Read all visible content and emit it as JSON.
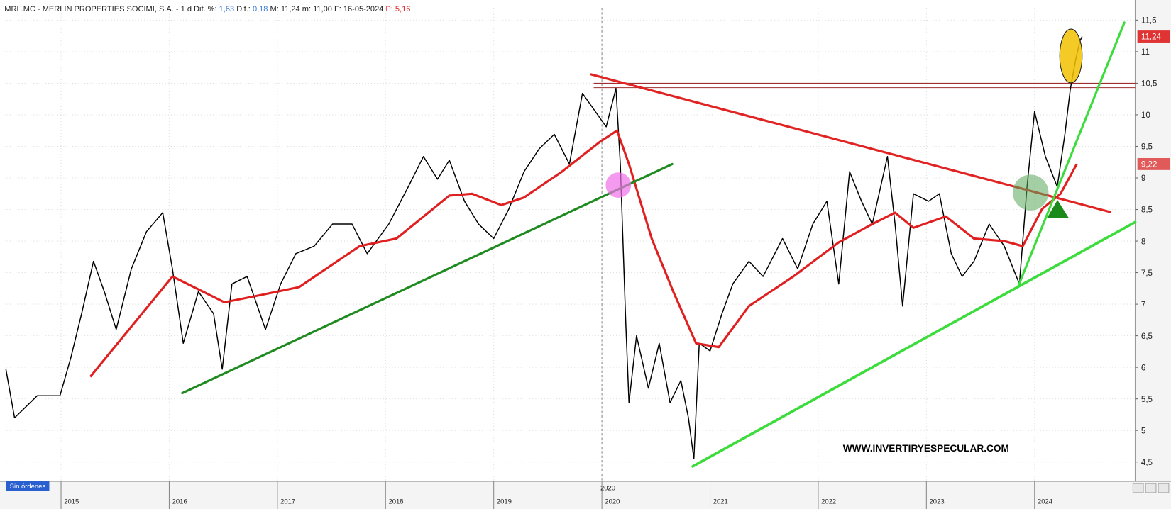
{
  "chart_data": {
    "type": "line",
    "header": [
      {
        "text": "MRL.MC - MERLIN PROPERTIES SOCIMI, S.A. - 1 d  Dif. %: ",
        "color": "#222222"
      },
      {
        "text": "1,63",
        "color": "#3a78d8"
      },
      {
        "text": "  Dif.: ",
        "color": "#222222"
      },
      {
        "text": "0,18",
        "color": "#3a78d8"
      },
      {
        "text": "  M: 11,24  m: 11,00  F: 16-05-2024  ",
        "color": "#222222"
      },
      {
        "text": "P: 5,16",
        "color": "#e02020"
      }
    ],
    "xlim": [
      2014.47,
      2024.93
    ],
    "ylim": [
      4.2,
      11.6
    ],
    "xticks": [
      2015,
      2016,
      2017,
      2018,
      2019,
      2020,
      2021,
      2022,
      2023,
      2024
    ],
    "yticks": [
      {
        "value": 4.5,
        "label": "4,5"
      },
      5,
      {
        "value": 5.5,
        "label": "5,5"
      },
      6,
      {
        "value": 6.5,
        "label": "6,5"
      },
      7,
      {
        "value": 7.5,
        "label": "7,5"
      },
      8,
      {
        "value": 8.5,
        "label": "8,5"
      },
      9,
      {
        "value": 9.5,
        "label": "9,5"
      },
      10,
      {
        "value": 10.5,
        "label": "10,5"
      },
      11,
      {
        "value": 11.5,
        "label": "11,5"
      }
    ],
    "grid": true,
    "crosshair_x": 2020,
    "series": [
      {
        "color": "#000000",
        "width": 1.4,
        "x": [
          2014.49,
          2014.57,
          2014.78,
          2014.99,
          2015.09,
          2015.19,
          2015.3,
          2015.4,
          2015.51,
          2015.65,
          2015.79,
          2015.94,
          2016.03,
          2016.13,
          2016.27,
          2016.41,
          2016.49,
          2016.58,
          2016.72,
          2016.89,
          2017.03,
          2017.17,
          2017.34,
          2017.51,
          2017.69,
          2017.83,
          2018.03,
          2018.21,
          2018.35,
          2018.48,
          2018.59,
          2018.73,
          2018.86,
          2019.0,
          2019.14,
          2019.28,
          2019.42,
          2019.56,
          2019.7,
          2019.82,
          2019.94,
          2020.04,
          2020.13,
          2020.17,
          2020.22,
          2020.25,
          2020.32,
          2020.43,
          2020.53,
          2020.63,
          2020.73,
          2020.8,
          2020.85,
          2020.9,
          2021.0,
          2021.11,
          2021.21,
          2021.36,
          2021.49,
          2021.67,
          2021.81,
          2021.95,
          2022.08,
          2022.19,
          2022.29,
          2022.4,
          2022.5,
          2022.64,
          2022.71,
          2022.78,
          2022.88,
          2023.02,
          2023.12,
          2023.23,
          2023.33,
          2023.44,
          2023.58,
          2023.72,
          2023.86,
          2023.93,
          2024.0,
          2024.1,
          2024.21,
          2024.28,
          2024.33,
          2024.38,
          2024.42,
          2024.44
        ],
        "values": [
          5.97,
          5.2,
          5.55,
          5.55,
          6.15,
          6.85,
          7.68,
          7.2,
          6.6,
          7.56,
          8.15,
          8.45,
          7.56,
          6.38,
          7.2,
          6.85,
          5.97,
          7.32,
          7.44,
          6.6,
          7.32,
          7.8,
          7.92,
          8.27,
          8.27,
          7.8,
          8.27,
          8.86,
          9.34,
          8.98,
          9.28,
          8.63,
          8.27,
          8.04,
          8.51,
          9.1,
          9.46,
          9.69,
          9.22,
          10.34,
          10.05,
          9.81,
          10.42,
          9.22,
          6.74,
          5.44,
          6.5,
          5.67,
          6.38,
          5.44,
          5.79,
          5.2,
          4.55,
          6.38,
          6.26,
          6.85,
          7.32,
          7.68,
          7.44,
          8.04,
          7.56,
          8.27,
          8.63,
          7.32,
          9.1,
          8.63,
          8.27,
          9.34,
          8.27,
          6.97,
          8.75,
          8.63,
          8.75,
          7.8,
          7.44,
          7.68,
          8.27,
          7.92,
          7.32,
          8.86,
          10.05,
          9.34,
          8.86,
          9.69,
          10.4,
          10.87,
          11.17,
          11.24
        ]
      },
      {
        "color": "#e02020",
        "width": 3,
        "x": [
          2015.27,
          2016.03,
          2016.51,
          2016.86,
          2017.2,
          2017.76,
          2018.1,
          2018.59,
          2018.8,
          2019.07,
          2019.28,
          2019.63,
          2019.98,
          2020.14,
          2020.25,
          2020.46,
          2020.66,
          2020.87,
          2021.08,
          2021.36,
          2021.77,
          2022.19,
          2022.5,
          2022.71,
          2022.88,
          2023.18,
          2023.44,
          2023.72,
          2023.89,
          2024.07,
          2024.24,
          2024.39
        ],
        "values": [
          5.85,
          7.44,
          7.03,
          7.15,
          7.27,
          7.92,
          8.04,
          8.72,
          8.75,
          8.57,
          8.69,
          9.1,
          9.57,
          9.75,
          9.22,
          8.04,
          7.2,
          6.38,
          6.32,
          6.97,
          7.44,
          7.98,
          8.27,
          8.45,
          8.21,
          8.39,
          8.04,
          8.0,
          7.92,
          8.51,
          8.75,
          9.22
        ]
      }
    ],
    "trendlines": [
      {
        "color": "#1f8a1f",
        "width": 3,
        "x": [
          2016.12,
          2020.65
        ],
        "values": [
          5.59,
          9.22
        ]
      },
      {
        "color": "#e02424",
        "width": 3,
        "x": [
          2019.9,
          2024.7
        ],
        "values": [
          10.64,
          8.46
        ]
      },
      {
        "color": "#3ddc3d",
        "width": 3.5,
        "x": [
          2020.84,
          2024.93
        ],
        "values": [
          4.43,
          8.3
        ]
      },
      {
        "color": "#3ddc3d",
        "width": 3,
        "x": [
          2023.85,
          2024.83
        ],
        "values": [
          7.29,
          11.46
        ]
      }
    ],
    "hlines": [
      {
        "value": 10.5,
        "color": "#a03030"
      },
      {
        "value": 10.43,
        "color": "#a03030"
      }
    ],
    "price_tags": [
      {
        "value": 11.24,
        "label": "11,24",
        "color": "#e03434"
      },
      {
        "value": 9.22,
        "label": "9,22",
        "color": "#e05a5a"
      }
    ],
    "watermark": "WWW.INVERTIRYESPECULAR.COM",
    "status": "Sin órdenes"
  }
}
